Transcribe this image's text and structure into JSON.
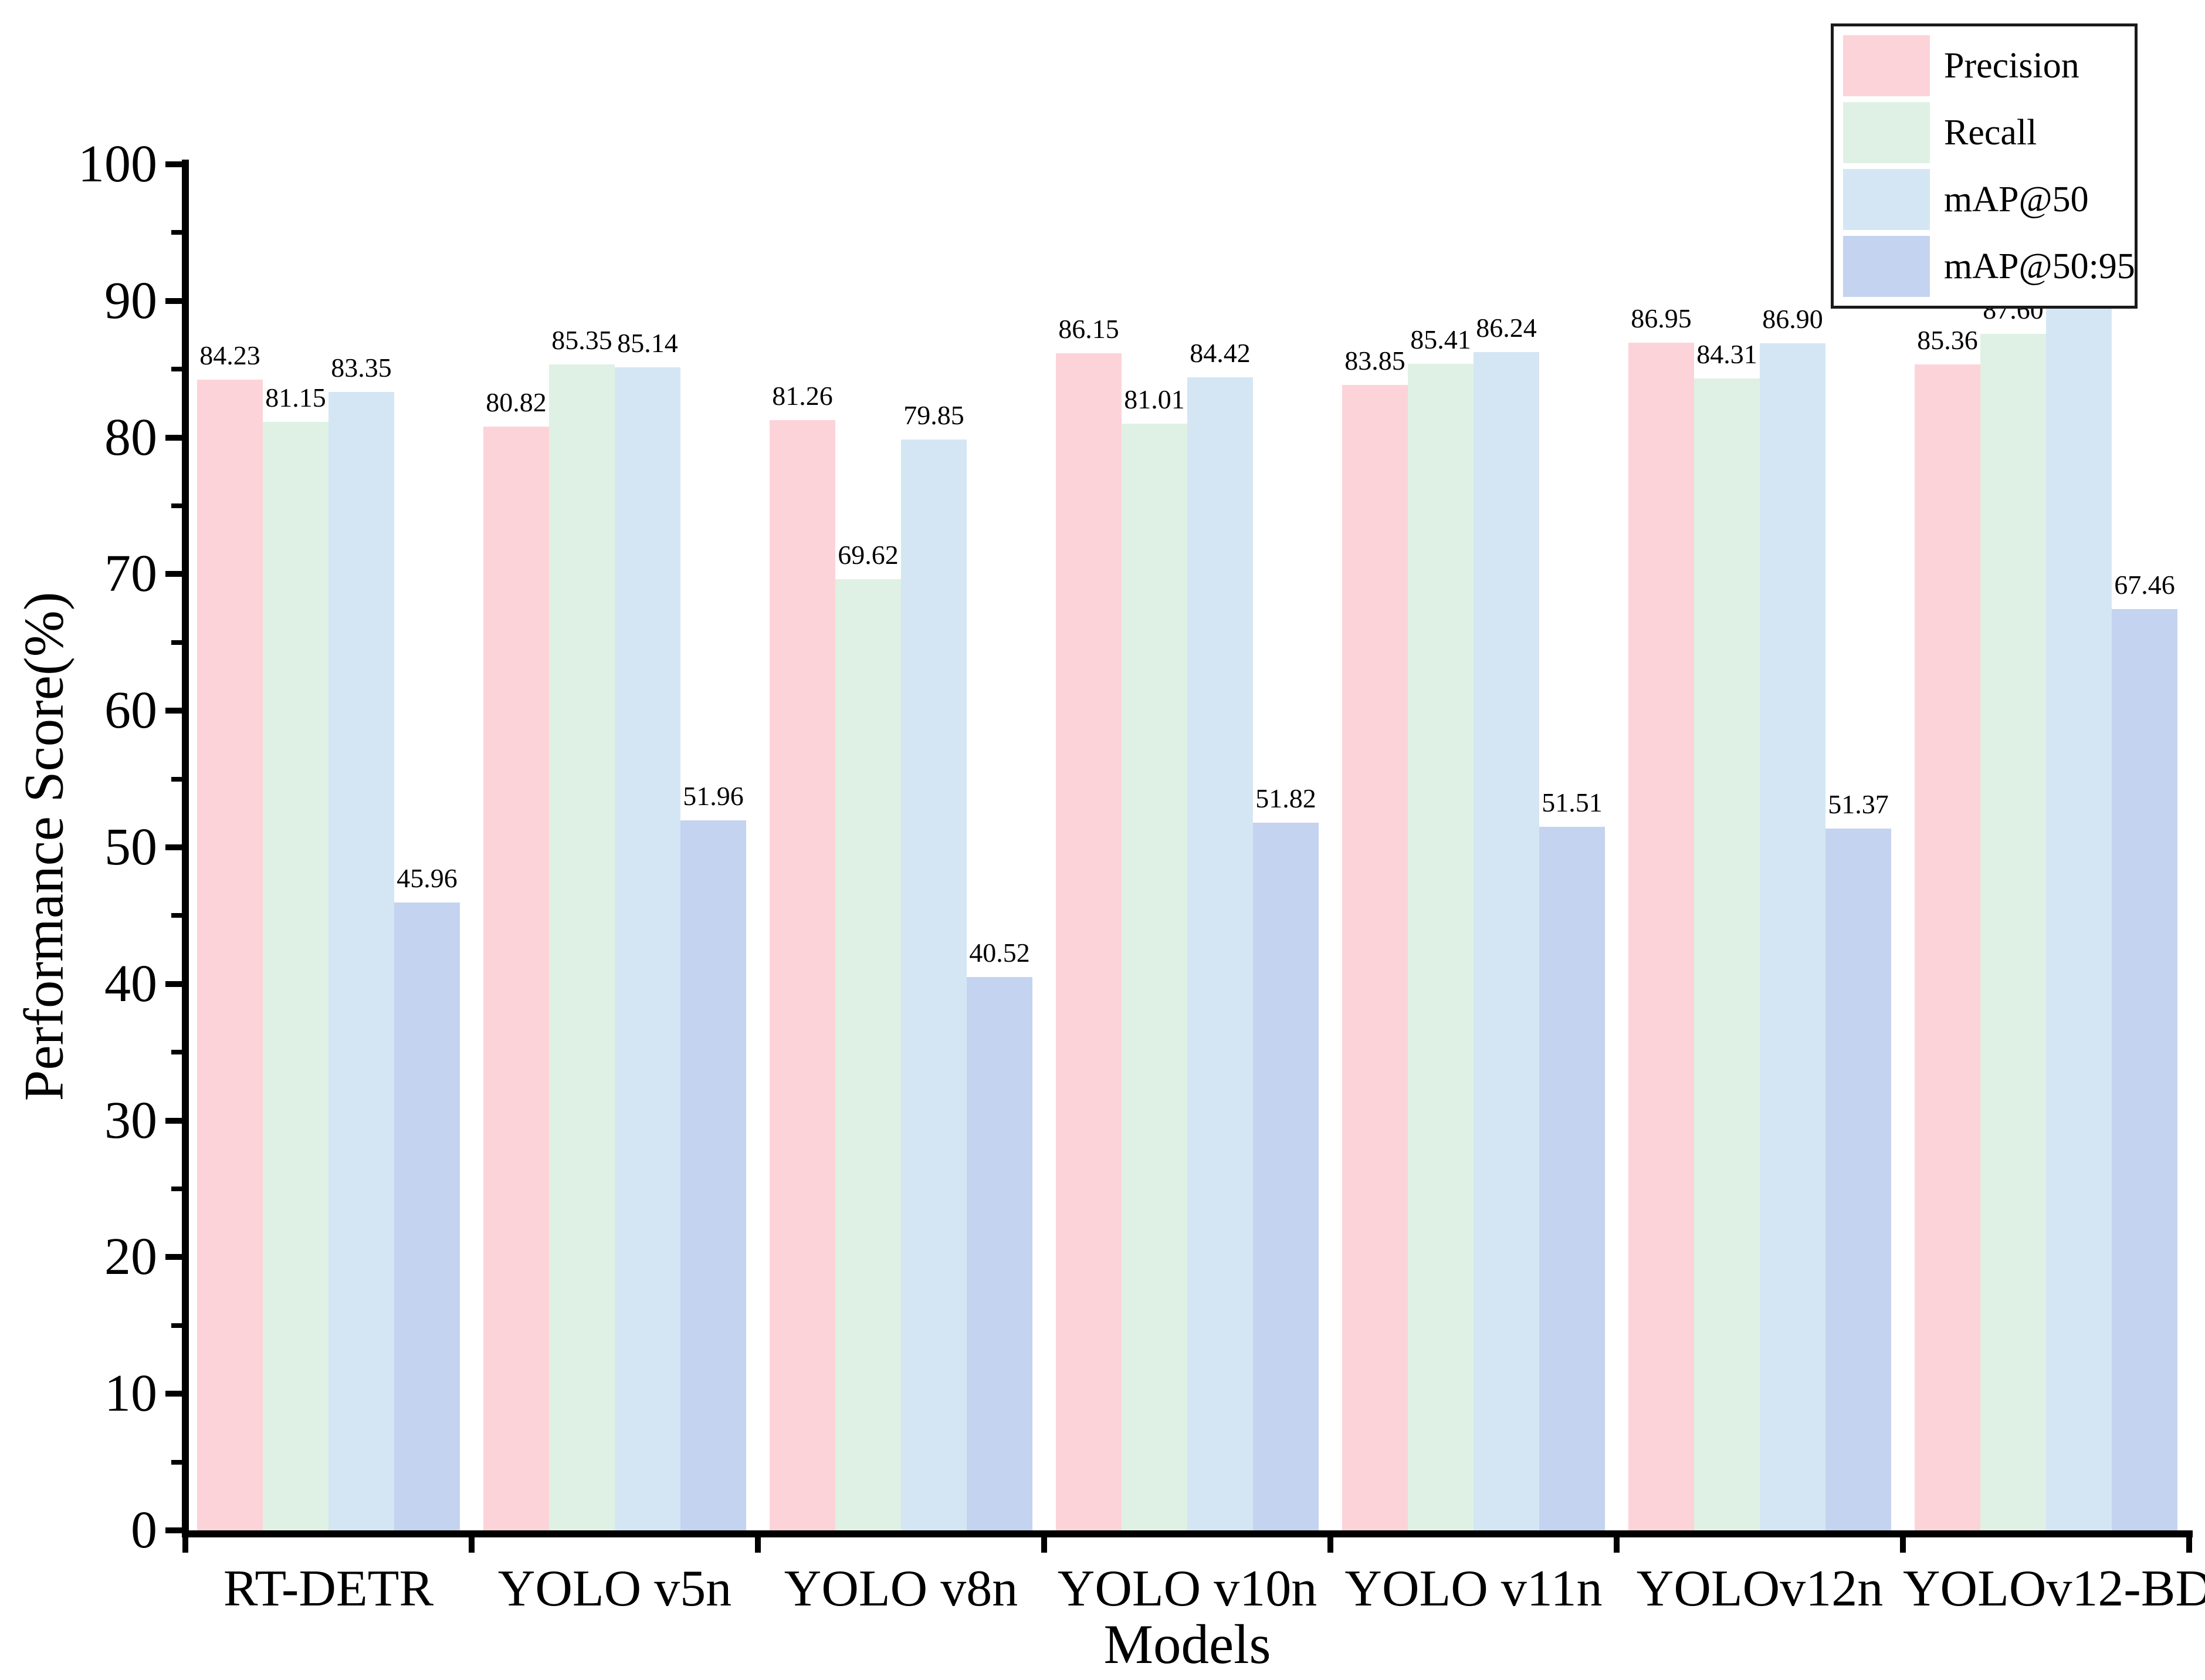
{
  "chart_data": {
    "type": "bar",
    "title": "",
    "xlabel": "Models",
    "ylabel": "Performance Score(%)",
    "ylim": [
      0,
      100
    ],
    "y_major_ticks": [
      0,
      10,
      20,
      30,
      40,
      50,
      60,
      70,
      80,
      90,
      100
    ],
    "y_minor_tick_step": 5,
    "grid": false,
    "legend_position": "top-right",
    "bar_label_decimals": 2,
    "categories": [
      "RT-DETR",
      "YOLO v5n",
      "YOLO v8n",
      "YOLO v10n",
      "YOLO v11n",
      "YOLOv12n",
      "YOLOv12-BDA"
    ],
    "series": [
      {
        "name": "Precision",
        "color": "#fcd3d9",
        "values": [
          84.23,
          80.82,
          81.26,
          86.15,
          83.85,
          86.95,
          85.36
        ],
        "labels": [
          "84.23",
          "80.82",
          "81.26",
          "86.15",
          "83.85",
          "86.95",
          "85.36"
        ]
      },
      {
        "name": "Recall",
        "color": "#dff1e4",
        "values": [
          81.15,
          85.35,
          69.62,
          81.01,
          85.41,
          84.31,
          87.6
        ],
        "labels": [
          "81.15",
          "85.35",
          "69.62",
          "81.01",
          "85.41",
          "84.31",
          "87.60"
        ]
      },
      {
        "name": "mAP@50",
        "color": "#d4e6f3",
        "values": [
          83.35,
          85.14,
          79.85,
          84.42,
          86.24,
          86.9,
          91.57
        ],
        "labels": [
          "83.35",
          "85.14",
          "79.85",
          "84.42",
          "86.24",
          "86.90",
          "91.57"
        ]
      },
      {
        "name": "mAP@50:95",
        "color": "#c4d3ef",
        "values": [
          45.96,
          51.96,
          40.52,
          51.82,
          51.51,
          51.37,
          67.46
        ],
        "labels": [
          "45.96",
          "51.96",
          "40.52",
          "51.82",
          "51.51",
          "51.37",
          "67.46"
        ]
      }
    ],
    "text_color": "#000000",
    "axis_color": "#000000"
  }
}
